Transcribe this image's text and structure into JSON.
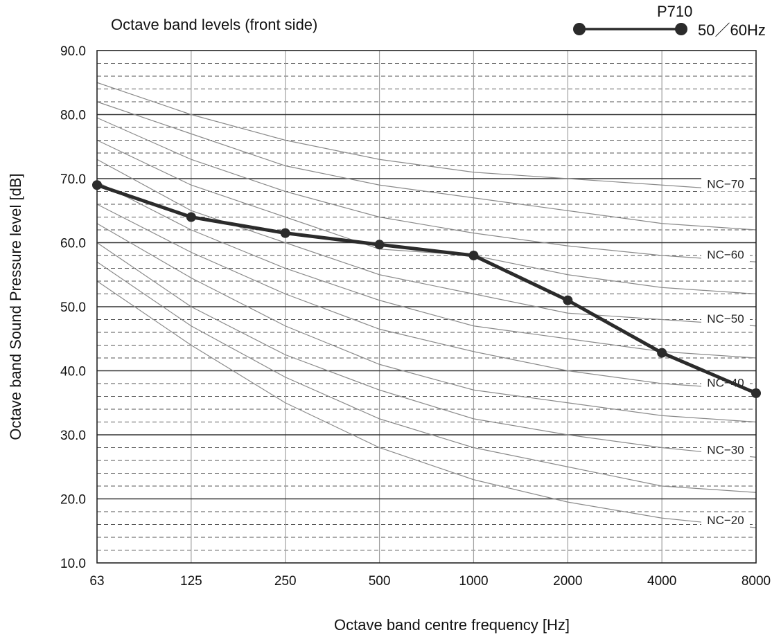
{
  "chart_data": {
    "type": "line",
    "title": "Octave band levels (front side)",
    "xlabel": "Octave band centre frequency [Hz]",
    "ylabel": "Octave band Sound Pressure level [dB]",
    "x_scale": "log",
    "categories": [
      "63",
      "125",
      "250",
      "500",
      "1000",
      "2000",
      "4000",
      "8000"
    ],
    "ylim": [
      10,
      90
    ],
    "y_ticks": [
      "10.0",
      "20.0",
      "30.0",
      "40.0",
      "50.0",
      "60.0",
      "70.0",
      "80.0",
      "90.0"
    ],
    "grid": true,
    "legend": {
      "position": "top-right",
      "series_label": "P710",
      "condition_label": "50／60Hz"
    },
    "series": [
      {
        "name": "P710",
        "values": [
          69.0,
          64.0,
          61.5,
          59.7,
          58.0,
          51.0,
          42.8,
          36.5
        ],
        "color": "#2b2b2b"
      }
    ],
    "nc_curves": [
      {
        "label": "NC−70",
        "values": [
          85,
          80,
          76,
          73,
          71,
          70,
          69,
          68
        ]
      },
      {
        "label": "",
        "values": [
          82,
          77,
          72,
          69,
          67,
          65,
          63,
          62
        ]
      },
      {
        "label": "NC−60",
        "values": [
          79.5,
          73,
          68,
          64,
          61.5,
          59.5,
          58,
          57
        ]
      },
      {
        "label": "",
        "values": [
          76,
          69,
          64,
          59,
          58,
          55,
          53,
          52
        ]
      },
      {
        "label": "NC−50",
        "values": [
          73,
          65,
          60,
          55,
          52,
          49,
          48,
          47
        ]
      },
      {
        "label": "",
        "values": [
          69.5,
          62,
          56,
          51,
          47,
          45,
          43,
          42
        ]
      },
      {
        "label": "NC−40",
        "values": [
          66,
          58.5,
          52,
          46.5,
          43,
          40,
          38,
          37
        ]
      },
      {
        "label": "",
        "values": [
          63,
          54.5,
          47,
          41,
          37,
          35,
          33,
          32
        ]
      },
      {
        "label": "NC−30",
        "values": [
          60,
          50,
          42.5,
          37,
          32.5,
          30,
          28,
          26.5
        ]
      },
      {
        "label": "",
        "values": [
          57,
          47,
          39,
          32.5,
          28,
          25,
          22,
          21
        ]
      },
      {
        "label": "NC−20",
        "values": [
          54,
          44,
          35,
          28,
          23,
          19.5,
          17,
          15.5
        ]
      }
    ],
    "colors": {
      "series": "#2b2b2b",
      "nc_curve": "#8a8a8a",
      "major_grid": "#333333",
      "minor_grid": "#555555",
      "vertical_grid": "#a0a0a0"
    }
  }
}
